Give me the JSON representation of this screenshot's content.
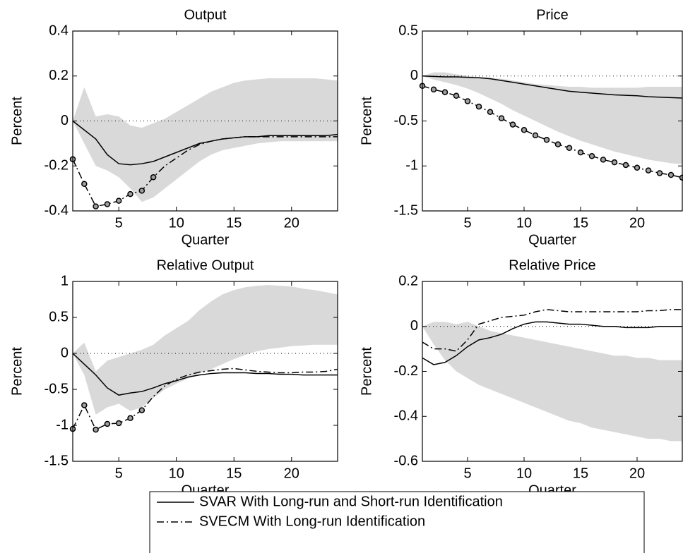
{
  "chart_data": [
    {
      "type": "line",
      "title": "Output",
      "xlabel": "Quarter",
      "ylabel": "Percent",
      "x": [
        1,
        2,
        3,
        4,
        5,
        6,
        7,
        8,
        9,
        10,
        11,
        12,
        13,
        14,
        15,
        16,
        17,
        18,
        19,
        20,
        21,
        22,
        23,
        24
      ],
      "xlim": [
        1,
        24
      ],
      "xticks": [
        5,
        10,
        15,
        20
      ],
      "ylim": [
        -0.4,
        0.4
      ],
      "yticks": [
        -0.4,
        -0.2,
        0,
        0.2,
        0.4
      ],
      "zero_line": true,
      "band": {
        "color": "#d9d9d9",
        "upper": [
          0,
          0.15,
          0.02,
          0.03,
          0.02,
          -0.02,
          -0.03,
          -0.01,
          0.01,
          0.04,
          0.07,
          0.1,
          0.13,
          0.15,
          0.17,
          0.18,
          0.185,
          0.19,
          0.19,
          0.19,
          0.19,
          0.19,
          0.185,
          0.18
        ],
        "lower": [
          0,
          -0.1,
          -0.2,
          -0.22,
          -0.25,
          -0.3,
          -0.36,
          -0.34,
          -0.3,
          -0.26,
          -0.22,
          -0.18,
          -0.15,
          -0.13,
          -0.12,
          -0.11,
          -0.1,
          -0.095,
          -0.09,
          -0.09,
          -0.09,
          -0.09,
          -0.09,
          -0.09
        ]
      },
      "series": [
        {
          "name": "SVAR With Long-run and Short-run Identification",
          "color": "#000000",
          "dash": "solid",
          "values": [
            0,
            -0.04,
            -0.08,
            -0.15,
            -0.19,
            -0.195,
            -0.19,
            -0.18,
            -0.16,
            -0.14,
            -0.12,
            -0.1,
            -0.09,
            -0.08,
            -0.075,
            -0.07,
            -0.07,
            -0.065,
            -0.065,
            -0.065,
            -0.065,
            -0.065,
            -0.065,
            -0.06
          ]
        },
        {
          "name": "SVECM With Long-run Identification",
          "color": "#000000",
          "dash": "dashdot",
          "marker_points": 8,
          "values": [
            -0.17,
            -0.28,
            -0.38,
            -0.37,
            -0.355,
            -0.325,
            -0.31,
            -0.25,
            -0.2,
            -0.165,
            -0.13,
            -0.105,
            -0.09,
            -0.08,
            -0.075,
            -0.07,
            -0.07,
            -0.07,
            -0.07,
            -0.07,
            -0.07,
            -0.07,
            -0.07,
            -0.07
          ]
        }
      ]
    },
    {
      "type": "line",
      "title": "Price",
      "xlabel": "Quarter",
      "ylabel": "Percent",
      "x": [
        1,
        2,
        3,
        4,
        5,
        6,
        7,
        8,
        9,
        10,
        11,
        12,
        13,
        14,
        15,
        16,
        17,
        18,
        19,
        20,
        21,
        22,
        23,
        24
      ],
      "xlim": [
        1,
        24
      ],
      "xticks": [
        5,
        10,
        15,
        20
      ],
      "ylim": [
        -1.5,
        0.5
      ],
      "yticks": [
        -1.5,
        -1,
        -0.5,
        0,
        0.5
      ],
      "zero_line": true,
      "band": {
        "color": "#d9d9d9",
        "upper": [
          0,
          0.04,
          0.04,
          0.02,
          0,
          -0.01,
          -0.02,
          -0.03,
          -0.05,
          -0.07,
          -0.09,
          -0.1,
          -0.11,
          -0.12,
          -0.12,
          -0.13,
          -0.13,
          -0.13,
          -0.13,
          -0.13,
          -0.12,
          -0.12,
          -0.12,
          -0.12
        ],
        "lower": [
          0,
          -0.04,
          -0.07,
          -0.1,
          -0.14,
          -0.19,
          -0.25,
          -0.31,
          -0.38,
          -0.44,
          -0.5,
          -0.56,
          -0.62,
          -0.67,
          -0.72,
          -0.76,
          -0.8,
          -0.84,
          -0.87,
          -0.9,
          -0.93,
          -0.95,
          -0.97,
          -0.98
        ]
      },
      "series": [
        {
          "color": "#000000",
          "dash": "solid",
          "values": [
            0,
            -0.005,
            -0.01,
            -0.01,
            -0.015,
            -0.02,
            -0.03,
            -0.05,
            -0.07,
            -0.09,
            -0.11,
            -0.13,
            -0.15,
            -0.17,
            -0.18,
            -0.19,
            -0.2,
            -0.21,
            -0.215,
            -0.22,
            -0.23,
            -0.235,
            -0.24,
            -0.245
          ]
        },
        {
          "color": "#000000",
          "dash": "dashdot",
          "marker_points": 24,
          "values": [
            -0.11,
            -0.15,
            -0.18,
            -0.22,
            -0.28,
            -0.34,
            -0.4,
            -0.47,
            -0.54,
            -0.6,
            -0.66,
            -0.71,
            -0.76,
            -0.8,
            -0.85,
            -0.89,
            -0.93,
            -0.96,
            -0.99,
            -1.02,
            -1.05,
            -1.08,
            -1.1,
            -1.13
          ]
        }
      ]
    },
    {
      "type": "line",
      "title": "Relative Output",
      "xlabel": "Quarter",
      "ylabel": "Percent",
      "x": [
        1,
        2,
        3,
        4,
        5,
        6,
        7,
        8,
        9,
        10,
        11,
        12,
        13,
        14,
        15,
        16,
        17,
        18,
        19,
        20,
        21,
        22,
        23,
        24
      ],
      "xlim": [
        1,
        24
      ],
      "xticks": [
        5,
        10,
        15,
        20
      ],
      "ylim": [
        -1.5,
        1
      ],
      "yticks": [
        -1.5,
        -1,
        -0.5,
        0,
        0.5,
        1
      ],
      "zero_line": true,
      "band": {
        "color": "#d9d9d9",
        "upper": [
          0,
          0.15,
          -0.25,
          -0.1,
          -0.05,
          0,
          0.05,
          0.12,
          0.25,
          0.35,
          0.45,
          0.6,
          0.72,
          0.82,
          0.88,
          0.92,
          0.94,
          0.95,
          0.94,
          0.93,
          0.9,
          0.88,
          0.85,
          0.82
        ],
        "lower": [
          0,
          -0.3,
          -0.85,
          -0.75,
          -0.7,
          -0.8,
          -0.75,
          -0.62,
          -0.5,
          -0.42,
          -0.35,
          -0.28,
          -0.22,
          -0.15,
          -0.08,
          -0.02,
          0.03,
          0.06,
          0.08,
          0.1,
          0.11,
          0.12,
          0.12,
          0.12
        ]
      },
      "series": [
        {
          "color": "#000000",
          "dash": "solid",
          "values": [
            0,
            -0.15,
            -0.3,
            -0.48,
            -0.58,
            -0.55,
            -0.53,
            -0.48,
            -0.42,
            -0.38,
            -0.33,
            -0.3,
            -0.28,
            -0.27,
            -0.27,
            -0.27,
            -0.28,
            -0.28,
            -0.29,
            -0.29,
            -0.3,
            -0.3,
            -0.3,
            -0.3
          ]
        },
        {
          "color": "#000000",
          "dash": "dashdot",
          "marker_points": 7,
          "values": [
            -1.05,
            -0.72,
            -1.06,
            -0.98,
            -0.97,
            -0.9,
            -0.79,
            -0.6,
            -0.45,
            -0.36,
            -0.3,
            -0.26,
            -0.24,
            -0.22,
            -0.21,
            -0.23,
            -0.25,
            -0.26,
            -0.27,
            -0.27,
            -0.26,
            -0.26,
            -0.25,
            -0.22
          ]
        }
      ]
    },
    {
      "type": "line",
      "title": "Relative Price",
      "xlabel": "Quarter",
      "ylabel": "Percent",
      "x": [
        1,
        2,
        3,
        4,
        5,
        6,
        7,
        8,
        9,
        10,
        11,
        12,
        13,
        14,
        15,
        16,
        17,
        18,
        19,
        20,
        21,
        22,
        23,
        24
      ],
      "xlim": [
        1,
        24
      ],
      "xticks": [
        5,
        10,
        15,
        20
      ],
      "ylim": [
        -0.6,
        0.2
      ],
      "yticks": [
        -0.6,
        -0.4,
        -0.2,
        0,
        0.2
      ],
      "zero_line": true,
      "band": {
        "color": "#d9d9d9",
        "upper": [
          0,
          0.02,
          0.02,
          0.01,
          0.02,
          0,
          -0.02,
          -0.03,
          -0.04,
          -0.05,
          -0.06,
          -0.07,
          -0.08,
          -0.09,
          -0.1,
          -0.11,
          -0.12,
          -0.13,
          -0.13,
          -0.14,
          -0.14,
          -0.15,
          -0.15,
          -0.15
        ],
        "lower": [
          0,
          -0.08,
          -0.15,
          -0.2,
          -0.23,
          -0.26,
          -0.28,
          -0.3,
          -0.32,
          -0.34,
          -0.36,
          -0.38,
          -0.4,
          -0.42,
          -0.43,
          -0.45,
          -0.46,
          -0.47,
          -0.48,
          -0.49,
          -0.5,
          -0.5,
          -0.51,
          -0.51
        ]
      },
      "series": [
        {
          "color": "#000000",
          "dash": "solid",
          "values": [
            -0.14,
            -0.17,
            -0.16,
            -0.13,
            -0.09,
            -0.06,
            -0.05,
            -0.035,
            -0.01,
            0.01,
            0.02,
            0.02,
            0.015,
            0.01,
            0.01,
            0.005,
            0,
            0,
            -0.005,
            -0.005,
            -0.005,
            0,
            0,
            0
          ]
        },
        {
          "color": "#000000",
          "dash": "dashdot",
          "values": [
            -0.07,
            -0.1,
            -0.1,
            -0.11,
            -0.06,
            0.01,
            0.025,
            0.04,
            0.045,
            0.05,
            0.065,
            0.075,
            0.07,
            0.065,
            0.065,
            0.065,
            0.065,
            0.065,
            0.065,
            0.065,
            0.07,
            0.07,
            0.075,
            0.075
          ]
        }
      ]
    }
  ]
}
